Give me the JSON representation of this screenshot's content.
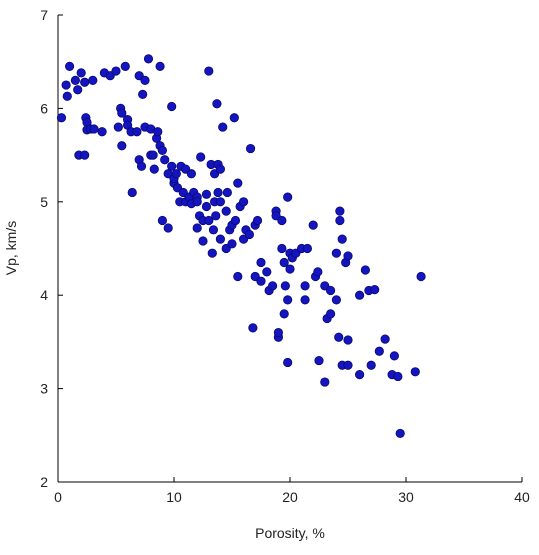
{
  "chart_data": {
    "type": "scatter",
    "x_label": "Porosity, %",
    "y_label": "Vp, km/s",
    "color": "#1414c0",
    "xlim": [
      0,
      40
    ],
    "xticks": [
      0,
      10,
      20,
      30,
      40
    ],
    "ylim": [
      2,
      7
    ],
    "yticks": [
      2,
      3,
      4,
      5,
      6,
      7
    ],
    "x": [
      0.3,
      0.7,
      0.8,
      1,
      1.5,
      1.7,
      1.8,
      2,
      2.3,
      2.4,
      2.5,
      2.3,
      2.5,
      2.8,
      3,
      3.1,
      3.8,
      4,
      4.5,
      5,
      5.2,
      5.4,
      5.5,
      5.5,
      5.8,
      6,
      6,
      6.3,
      6.4,
      6.8,
      7,
      7,
      7.2,
      7.3,
      7.5,
      7.5,
      7.8,
      8,
      8,
      8.2,
      8.3,
      8.5,
      8.6,
      8.8,
      8.8,
      9,
      9,
      9.2,
      9.5,
      9.5,
      9.8,
      9.8,
      10,
      10,
      10.2,
      10.3,
      10.5,
      10.6,
      10.8,
      11,
      11,
      11.3,
      11.5,
      11.5,
      11.7,
      12,
      12,
      12,
      12.2,
      12.3,
      12.5,
      12.5,
      12.8,
      12.8,
      13,
      13,
      13.2,
      13.3,
      13.4,
      13.5,
      13.5,
      13.6,
      13.7,
      13.8,
      13.8,
      14,
      14,
      14,
      14.2,
      14.5,
      14.5,
      14.6,
      14.8,
      15,
      15,
      15.2,
      15.3,
      15.5,
      15.5,
      15.7,
      16,
      16,
      16.2,
      16.5,
      16.6,
      16.8,
      17,
      17,
      17.2,
      17.5,
      17.5,
      18,
      18.2,
      18.5,
      18.8,
      18.8,
      19,
      19,
      19.3,
      19.3,
      19.5,
      19.5,
      19.6,
      19.8,
      19.8,
      19.8,
      20,
      20,
      20.2,
      20.5,
      21,
      21.3,
      21.3,
      21.5,
      22,
      22.2,
      22.4,
      22.5,
      23,
      23,
      23.2,
      23.5,
      23.5,
      24,
      24,
      24.2,
      24.3,
      24.3,
      24.5,
      24.5,
      24.8,
      25,
      25,
      25,
      26,
      26,
      26.5,
      26.8,
      27,
      27.3,
      27.7,
      28.2,
      28.8,
      29,
      29.3,
      29.5,
      30.8,
      31.3
    ],
    "y": [
      5.9,
      6.25,
      6.13,
      6.45,
      6.3,
      6.2,
      5.5,
      6.38,
      6.28,
      5.9,
      5.85,
      5.5,
      5.77,
      5.78,
      6.3,
      5.78,
      5.75,
      6.38,
      6.35,
      6.4,
      5.8,
      6.0,
      5.6,
      5.95,
      6.45,
      5.88,
      5.82,
      5.75,
      5.1,
      5.75,
      5.45,
      6.35,
      5.38,
      6.15,
      6.3,
      5.8,
      6.53,
      5.5,
      5.78,
      5.5,
      5.35,
      5.68,
      5.75,
      6.45,
      5.6,
      4.8,
      5.55,
      5.45,
      5.3,
      4.72,
      6.02,
      5.38,
      5.2,
      5.25,
      5.3,
      5.15,
      5.0,
      5.38,
      5.1,
      5.0,
      5.35,
      5.05,
      4.98,
      5.3,
      5.1,
      5.05,
      5.0,
      4.72,
      4.85,
      5.48,
      4.8,
      4.58,
      5.08,
      4.95,
      6.4,
      4.8,
      5.4,
      4.45,
      4.7,
      5.3,
      5.0,
      4.85,
      6.05,
      5.1,
      5.4,
      5.0,
      5.35,
      4.6,
      5.8,
      4.9,
      4.5,
      5.1,
      4.7,
      4.75,
      4.55,
      5.9,
      4.8,
      4.2,
      5.2,
      4.95,
      5.0,
      4.6,
      4.7,
      4.65,
      5.57,
      3.65,
      4.75,
      4.2,
      4.8,
      4.35,
      4.15,
      4.25,
      4.05,
      4.1,
      4.9,
      4.85,
      3.55,
      3.6,
      4.5,
      4.8,
      3.8,
      4.35,
      4.1,
      5.05,
      3.95,
      3.28,
      4.45,
      4.28,
      4.4,
      4.45,
      4.5,
      4.1,
      3.95,
      4.5,
      4.75,
      4.2,
      4.25,
      3.3,
      3.07,
      4.1,
      3.75,
      3.8,
      4.05,
      4.45,
      3.95,
      3.55,
      4.9,
      4.8,
      3.25,
      4.6,
      4.35,
      3.52,
      3.25,
      4.42,
      4.0,
      3.15,
      4.27,
      4.05,
      3.25,
      4.06,
      3.4,
      3.53,
      3.15,
      3.35,
      3.13,
      2.52,
      3.18,
      4.2
    ]
  }
}
